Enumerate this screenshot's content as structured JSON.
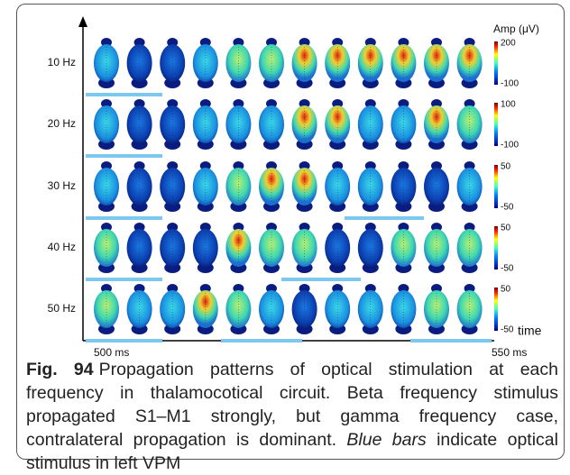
{
  "figure": {
    "unit_label": "Amp (μV)",
    "time_label": "time",
    "start_label": "500 ms",
    "end_label": "550 ms",
    "rows": [
      {
        "label": "10 Hz",
        "scale_max": 200,
        "scale_min": -100
      },
      {
        "label": "20 Hz",
        "scale_max": 100,
        "scale_min": -100
      },
      {
        "label": "30 Hz",
        "scale_max": 50,
        "scale_min": -50
      },
      {
        "label": "40 Hz",
        "scale_max": 50,
        "scale_min": -50
      },
      {
        "label": "50 Hz",
        "scale_max": 50,
        "scale_min": -50
      }
    ]
  },
  "caption": {
    "label": "Fig. 94",
    "text": "Propagation patterns of optical stimulation at each frequency in thalamocotical circuit. Beta frequency stimulus propagated S1–M1 strongly, but gamma frequency case, contralateral propagation is dominant.",
    "emphasis": "Blue bars",
    "text_end": "indicate optical stimulus in left VPM"
  }
}
